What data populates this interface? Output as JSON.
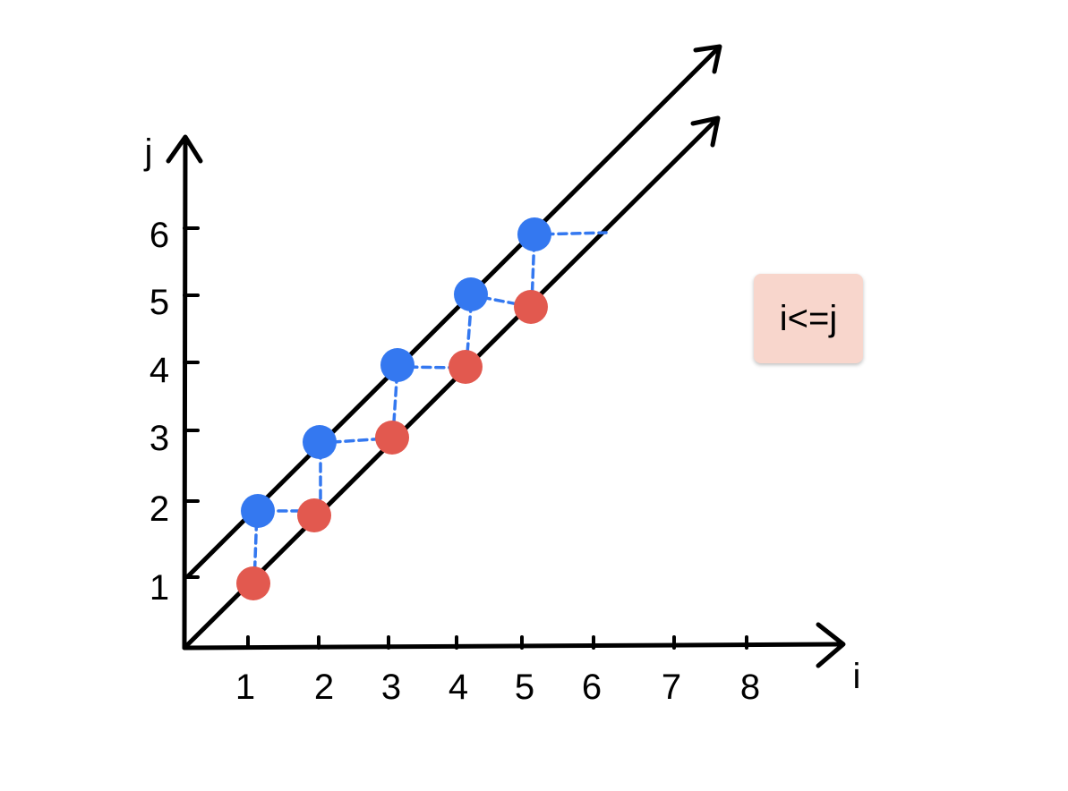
{
  "axes": {
    "x_label": "i",
    "y_label": "j",
    "x_ticks": [
      "1",
      "2",
      "3",
      "4",
      "5",
      "6",
      "7",
      "8"
    ],
    "y_ticks": [
      "1",
      "2",
      "3",
      "4",
      "5",
      "6"
    ]
  },
  "condition_label": "i<=j",
  "colors": {
    "blue": "#3478f0",
    "red": "#e2594f",
    "badge": "#f8d6cc",
    "line": "#000000"
  },
  "blue_points": [
    {
      "i": 1,
      "j": 2
    },
    {
      "i": 2,
      "j": 3
    },
    {
      "i": 3,
      "j": 4
    },
    {
      "i": 4,
      "j": 5
    },
    {
      "i": 5,
      "j": 6
    }
  ],
  "red_points": [
    {
      "i": 1,
      "j": 1
    },
    {
      "i": 2,
      "j": 2
    },
    {
      "i": 3,
      "j": 3
    },
    {
      "i": 4,
      "j": 4
    },
    {
      "i": 5,
      "j": 5
    }
  ]
}
